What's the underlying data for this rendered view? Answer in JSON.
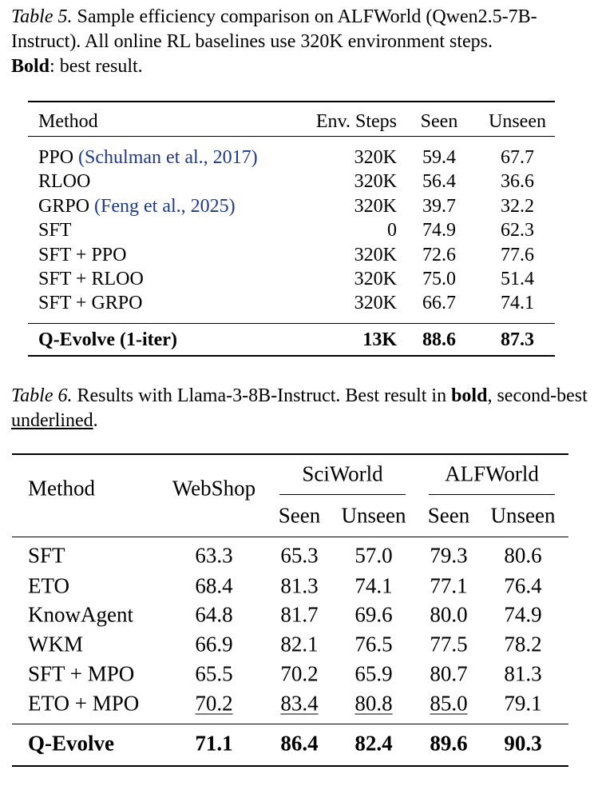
{
  "table5": {
    "label": "Table 5.",
    "caption": "Sample efficiency comparison on ALFWorld (Qwen2.5-7B-Instruct). All online RL baselines use 320K environment steps.",
    "caption_bold": "Bold",
    "caption_end": ": best result.",
    "header": [
      "Method",
      "Env. Steps",
      "Seen",
      "Unseen"
    ],
    "rows": [
      {
        "method": "PPO",
        "citation": "(Schulman et al., 2017)",
        "cells": [
          "320K",
          "59.4",
          "67.7"
        ]
      },
      {
        "method": "RLOO",
        "cells": [
          "320K",
          "56.4",
          "36.6"
        ]
      },
      {
        "method": "GRPO",
        "citation": "(Feng et al., 2025)",
        "cells": [
          "320K",
          "39.7",
          "32.2"
        ]
      },
      {
        "method": "SFT",
        "cells": [
          "0",
          "74.9",
          "62.3"
        ]
      },
      {
        "method": "SFT + PPO",
        "cells": [
          "320K",
          "72.6",
          "77.6"
        ]
      },
      {
        "method": "SFT + RLOO",
        "cells": [
          "320K",
          "75.0",
          "51.4"
        ]
      },
      {
        "method": "SFT + GRPO",
        "cells": [
          "320K",
          "66.7",
          "74.1"
        ]
      }
    ],
    "best": {
      "method": "Q-Evolve (1-iter)",
      "cells": [
        "13K",
        "88.6",
        "87.3"
      ]
    }
  },
  "table6": {
    "label": "Table 6.",
    "caption": "Results with Llama-3-8B-Instruct. Best result in ",
    "caption_bold": "bold",
    "caption_mid": ", second-best ",
    "caption_underline": "underlined",
    "caption_end": ".",
    "header": [
      "Method",
      "WebShop"
    ],
    "groups": [
      {
        "name": "SciWorld",
        "sub": [
          "Seen",
          "Unseen"
        ]
      },
      {
        "name": "ALFWorld",
        "sub": [
          "Seen",
          "Unseen"
        ]
      }
    ],
    "rows": [
      [
        "SFT",
        "63.3",
        "65.3",
        "57.0",
        "79.3",
        "80.6"
      ],
      [
        "ETO",
        "68.4",
        "81.3",
        "74.1",
        "77.1",
        "76.4"
      ],
      [
        "KnowAgent",
        "64.8",
        "81.7",
        "69.6",
        "80.0",
        "74.9"
      ],
      [
        "WKM",
        "66.9",
        "82.1",
        "76.5",
        "77.5",
        "78.2"
      ],
      [
        "SFT + MPO",
        "65.5",
        "70.2",
        "65.9",
        "80.7",
        "81.3"
      ],
      [
        "ETO + MPO",
        "70.2",
        "83.4",
        "80.8",
        "85.0",
        "79.1"
      ]
    ],
    "underlined": [
      [
        5,
        1
      ],
      [
        5,
        2
      ],
      [
        5,
        3
      ],
      [
        5,
        4
      ]
    ],
    "best": [
      "Q-Evolve",
      "71.1",
      "86.4",
      "82.4",
      "89.6",
      "90.3"
    ]
  }
}
